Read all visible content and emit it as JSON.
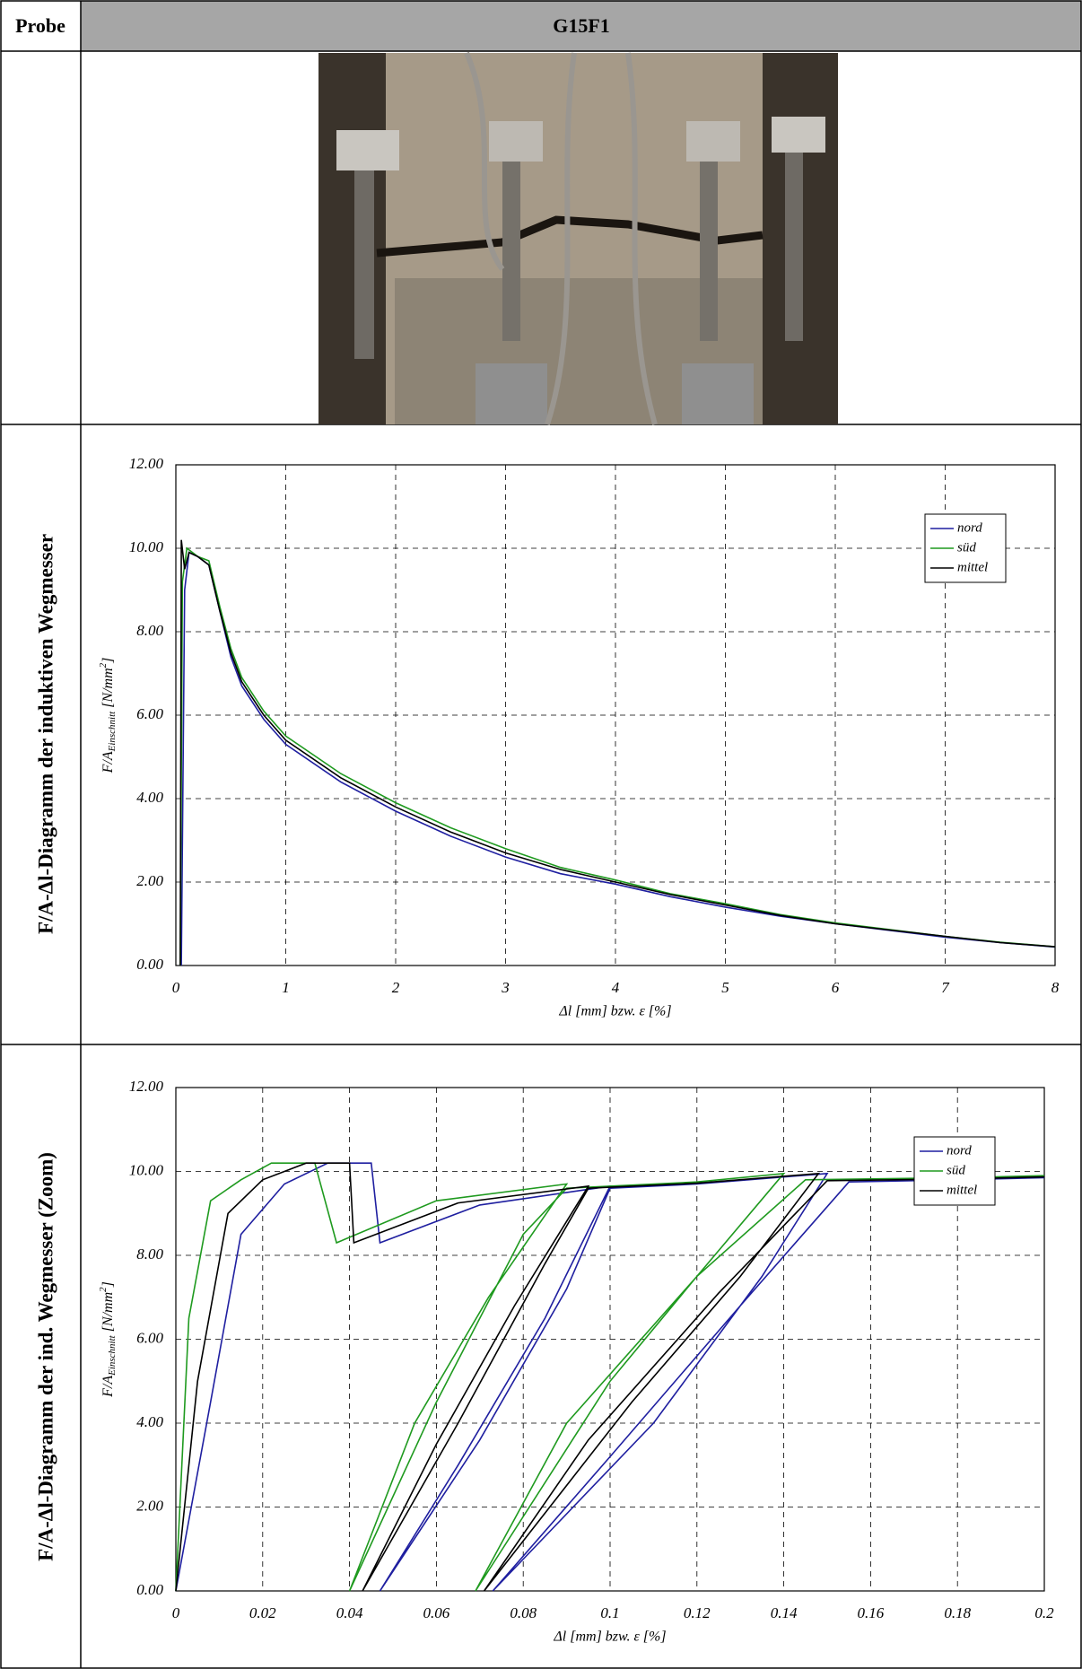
{
  "table": {
    "header": [
      "Probe",
      "G15F1"
    ],
    "row_labels": [
      "F/A-Δl-Diagramm der induktiven Wegmesser",
      "F/A-Δl-Diagramm der ind. Wegmesser (Zoom)"
    ]
  },
  "chart_data": [
    {
      "type": "line",
      "ylabel": {
        "main": "F/A",
        "sub": "Einschnitt",
        "rest": " [N/mm",
        "sup": "2",
        "end": "]"
      },
      "xlabel": "Δl [mm] bzw. ε [%]",
      "xlim": [
        0,
        8
      ],
      "xticks": [
        0,
        1,
        2,
        3,
        4,
        5,
        6,
        7,
        8
      ],
      "ylim": [
        0,
        12
      ],
      "yticks": [
        {
          "value": 0,
          "label": "0.00"
        },
        {
          "value": 2,
          "label": "2.00"
        },
        {
          "value": 4,
          "label": "4.00"
        },
        {
          "value": 6,
          "label": "6.00"
        },
        {
          "value": 8,
          "label": "8.00"
        },
        {
          "value": 10,
          "label": "10.00"
        },
        {
          "value": 12,
          "label": "12.00"
        }
      ],
      "grid": true,
      "legend": "upper right",
      "series": [
        {
          "name": "nord",
          "color": "#1f1fa0",
          "x": [
            0.05,
            0.08,
            0.12,
            0.2,
            0.3,
            0.4,
            0.5,
            0.6,
            0.8,
            1,
            1.5,
            2,
            2.5,
            3,
            3.5,
            4,
            4.5,
            5,
            5.5,
            6,
            6.5,
            7,
            7.5,
            8
          ],
          "values": [
            0,
            9.0,
            9.9,
            9.8,
            9.6,
            8.5,
            7.4,
            6.7,
            5.9,
            5.3,
            4.4,
            3.7,
            3.1,
            2.6,
            2.2,
            1.95,
            1.65,
            1.4,
            1.18,
            1.0,
            0.84,
            0.68,
            0.55,
            0.44
          ]
        },
        {
          "name": "süd",
          "color": "#1f9a1f",
          "x": [
            0.04,
            0.06,
            0.1,
            0.2,
            0.3,
            0.4,
            0.5,
            0.6,
            0.8,
            1,
            1.5,
            2,
            2.5,
            3,
            3.5,
            4,
            4.5,
            5,
            5.5,
            6,
            6.5,
            7,
            7.5,
            8
          ],
          "values": [
            0,
            9.2,
            10.0,
            9.8,
            9.7,
            8.6,
            7.6,
            6.9,
            6.1,
            5.5,
            4.6,
            3.9,
            3.3,
            2.8,
            2.35,
            2.05,
            1.72,
            1.48,
            1.22,
            1.02,
            0.86,
            0.7,
            0.56,
            0.45
          ]
        },
        {
          "name": "mittel",
          "color": "#000000",
          "x": [
            0.04,
            0.05,
            0.08,
            0.12,
            0.2,
            0.3,
            0.4,
            0.5,
            0.6,
            0.8,
            1,
            1.5,
            2,
            2.5,
            3,
            3.5,
            4,
            4.5,
            5,
            5.5,
            6,
            6.5,
            7,
            7.5,
            8
          ],
          "values": [
            0,
            10.2,
            9.5,
            9.9,
            9.8,
            9.6,
            8.5,
            7.5,
            6.8,
            6.0,
            5.4,
            4.5,
            3.8,
            3.2,
            2.7,
            2.3,
            2.0,
            1.7,
            1.45,
            1.2,
            1.0,
            0.85,
            0.7,
            0.55,
            0.45
          ]
        }
      ]
    },
    {
      "type": "line",
      "ylabel": {
        "main": "F/A",
        "sub": "Einschnitt",
        "rest": " [N/mm",
        "sup": "2",
        "end": "]"
      },
      "xlabel": "Δl [mm] bzw. ε [%]",
      "xlim": [
        0,
        0.2
      ],
      "xticks": [
        0,
        0.02,
        0.04,
        0.06,
        0.08,
        0.1,
        0.12,
        0.14,
        0.16,
        0.18,
        0.2
      ],
      "ylim": [
        0,
        12
      ],
      "yticks": [
        {
          "value": 0,
          "label": "0.00"
        },
        {
          "value": 2,
          "label": "2.00"
        },
        {
          "value": 4,
          "label": "4.00"
        },
        {
          "value": 6,
          "label": "6.00"
        },
        {
          "value": 8,
          "label": "8.00"
        },
        {
          "value": 10,
          "label": "10.00"
        },
        {
          "value": 12,
          "label": "12.00"
        }
      ],
      "grid": true,
      "legend": "upper right",
      "series": [
        {
          "name": "nord",
          "color": "#1f1fa0",
          "x": [
            0,
            0.008,
            0.015,
            0.025,
            0.035,
            0.045,
            0.047,
            0.07,
            0.1,
            0.085,
            0.065,
            0.047,
            0.07,
            0.09,
            0.1,
            0.12,
            0.15,
            0.135,
            0.11,
            0.073,
            0.1,
            0.13,
            0.155,
            0.18,
            0.2
          ],
          "values": [
            0,
            4.5,
            8.5,
            9.7,
            10.2,
            10.2,
            8.3,
            9.2,
            9.65,
            6.5,
            3,
            0,
            3.6,
            7.2,
            9.6,
            9.7,
            9.95,
            7.5,
            4,
            0,
            3.2,
            6.8,
            9.75,
            9.8,
            9.85
          ]
        },
        {
          "name": "süd",
          "color": "#1f9a1f",
          "x": [
            0,
            0.003,
            0.008,
            0.015,
            0.022,
            0.032,
            0.037,
            0.06,
            0.09,
            0.072,
            0.055,
            0.04,
            0.06,
            0.08,
            0.09,
            0.12,
            0.14,
            0.12,
            0.1,
            0.069,
            0.09,
            0.12,
            0.145,
            0.18,
            0.2
          ],
          "values": [
            0,
            6.5,
            9.3,
            9.8,
            10.2,
            10.2,
            8.3,
            9.3,
            9.7,
            7,
            4,
            0,
            4.5,
            8.5,
            9.6,
            9.75,
            9.95,
            7.5,
            5,
            0,
            4,
            7.5,
            9.8,
            9.85,
            9.9
          ]
        },
        {
          "name": "mittel",
          "color": "#000000",
          "x": [
            0,
            0.005,
            0.012,
            0.02,
            0.03,
            0.04,
            0.041,
            0.065,
            0.095,
            0.078,
            0.06,
            0.043,
            0.065,
            0.085,
            0.095,
            0.12,
            0.148,
            0.13,
            0.105,
            0.071,
            0.095,
            0.125,
            0.15,
            0.18,
            0.2
          ],
          "values": [
            0,
            5,
            9,
            9.8,
            10.2,
            10.2,
            8.3,
            9.25,
            9.65,
            6.8,
            3.5,
            0,
            4,
            7.8,
            9.6,
            9.72,
            9.95,
            7.5,
            4.5,
            0,
            3.6,
            7.1,
            9.78,
            9.82,
            9.87
          ]
        }
      ]
    }
  ]
}
